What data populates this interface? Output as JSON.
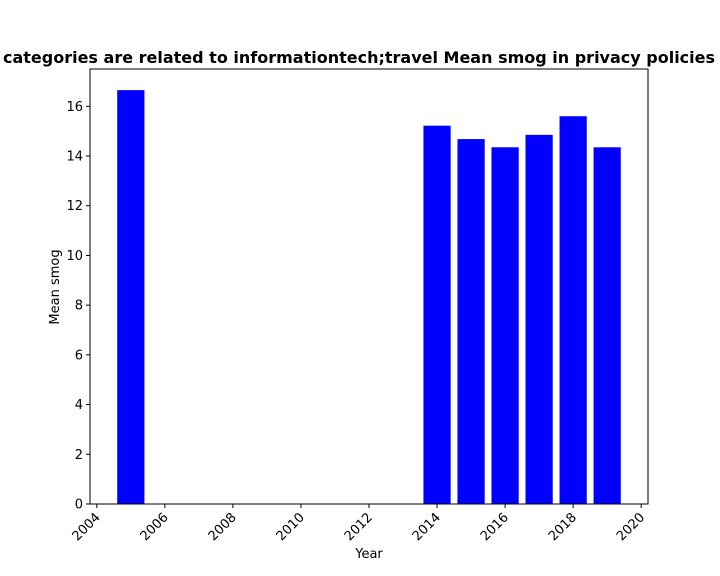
{
  "chart_data": {
    "type": "bar",
    "title": "categories are related to informationtech;travel Mean smog in privacy policies",
    "xlabel": "Year",
    "ylabel": "Mean smog",
    "x": [
      2005,
      2014,
      2015,
      2016,
      2017,
      2018,
      2019
    ],
    "values": [
      16.65,
      15.22,
      14.68,
      14.35,
      14.85,
      15.6,
      14.35
    ],
    "xlim": [
      2003.8,
      2020.2
    ],
    "ylim": [
      0,
      17.5
    ],
    "xticks": [
      2004,
      2006,
      2008,
      2010,
      2012,
      2014,
      2016,
      2018,
      2020
    ],
    "yticks": [
      0,
      2,
      4,
      6,
      8,
      10,
      12,
      14,
      16
    ],
    "bar_width_years": 0.8,
    "bar_color": "#0000ff",
    "grid": false,
    "legend": "none"
  }
}
